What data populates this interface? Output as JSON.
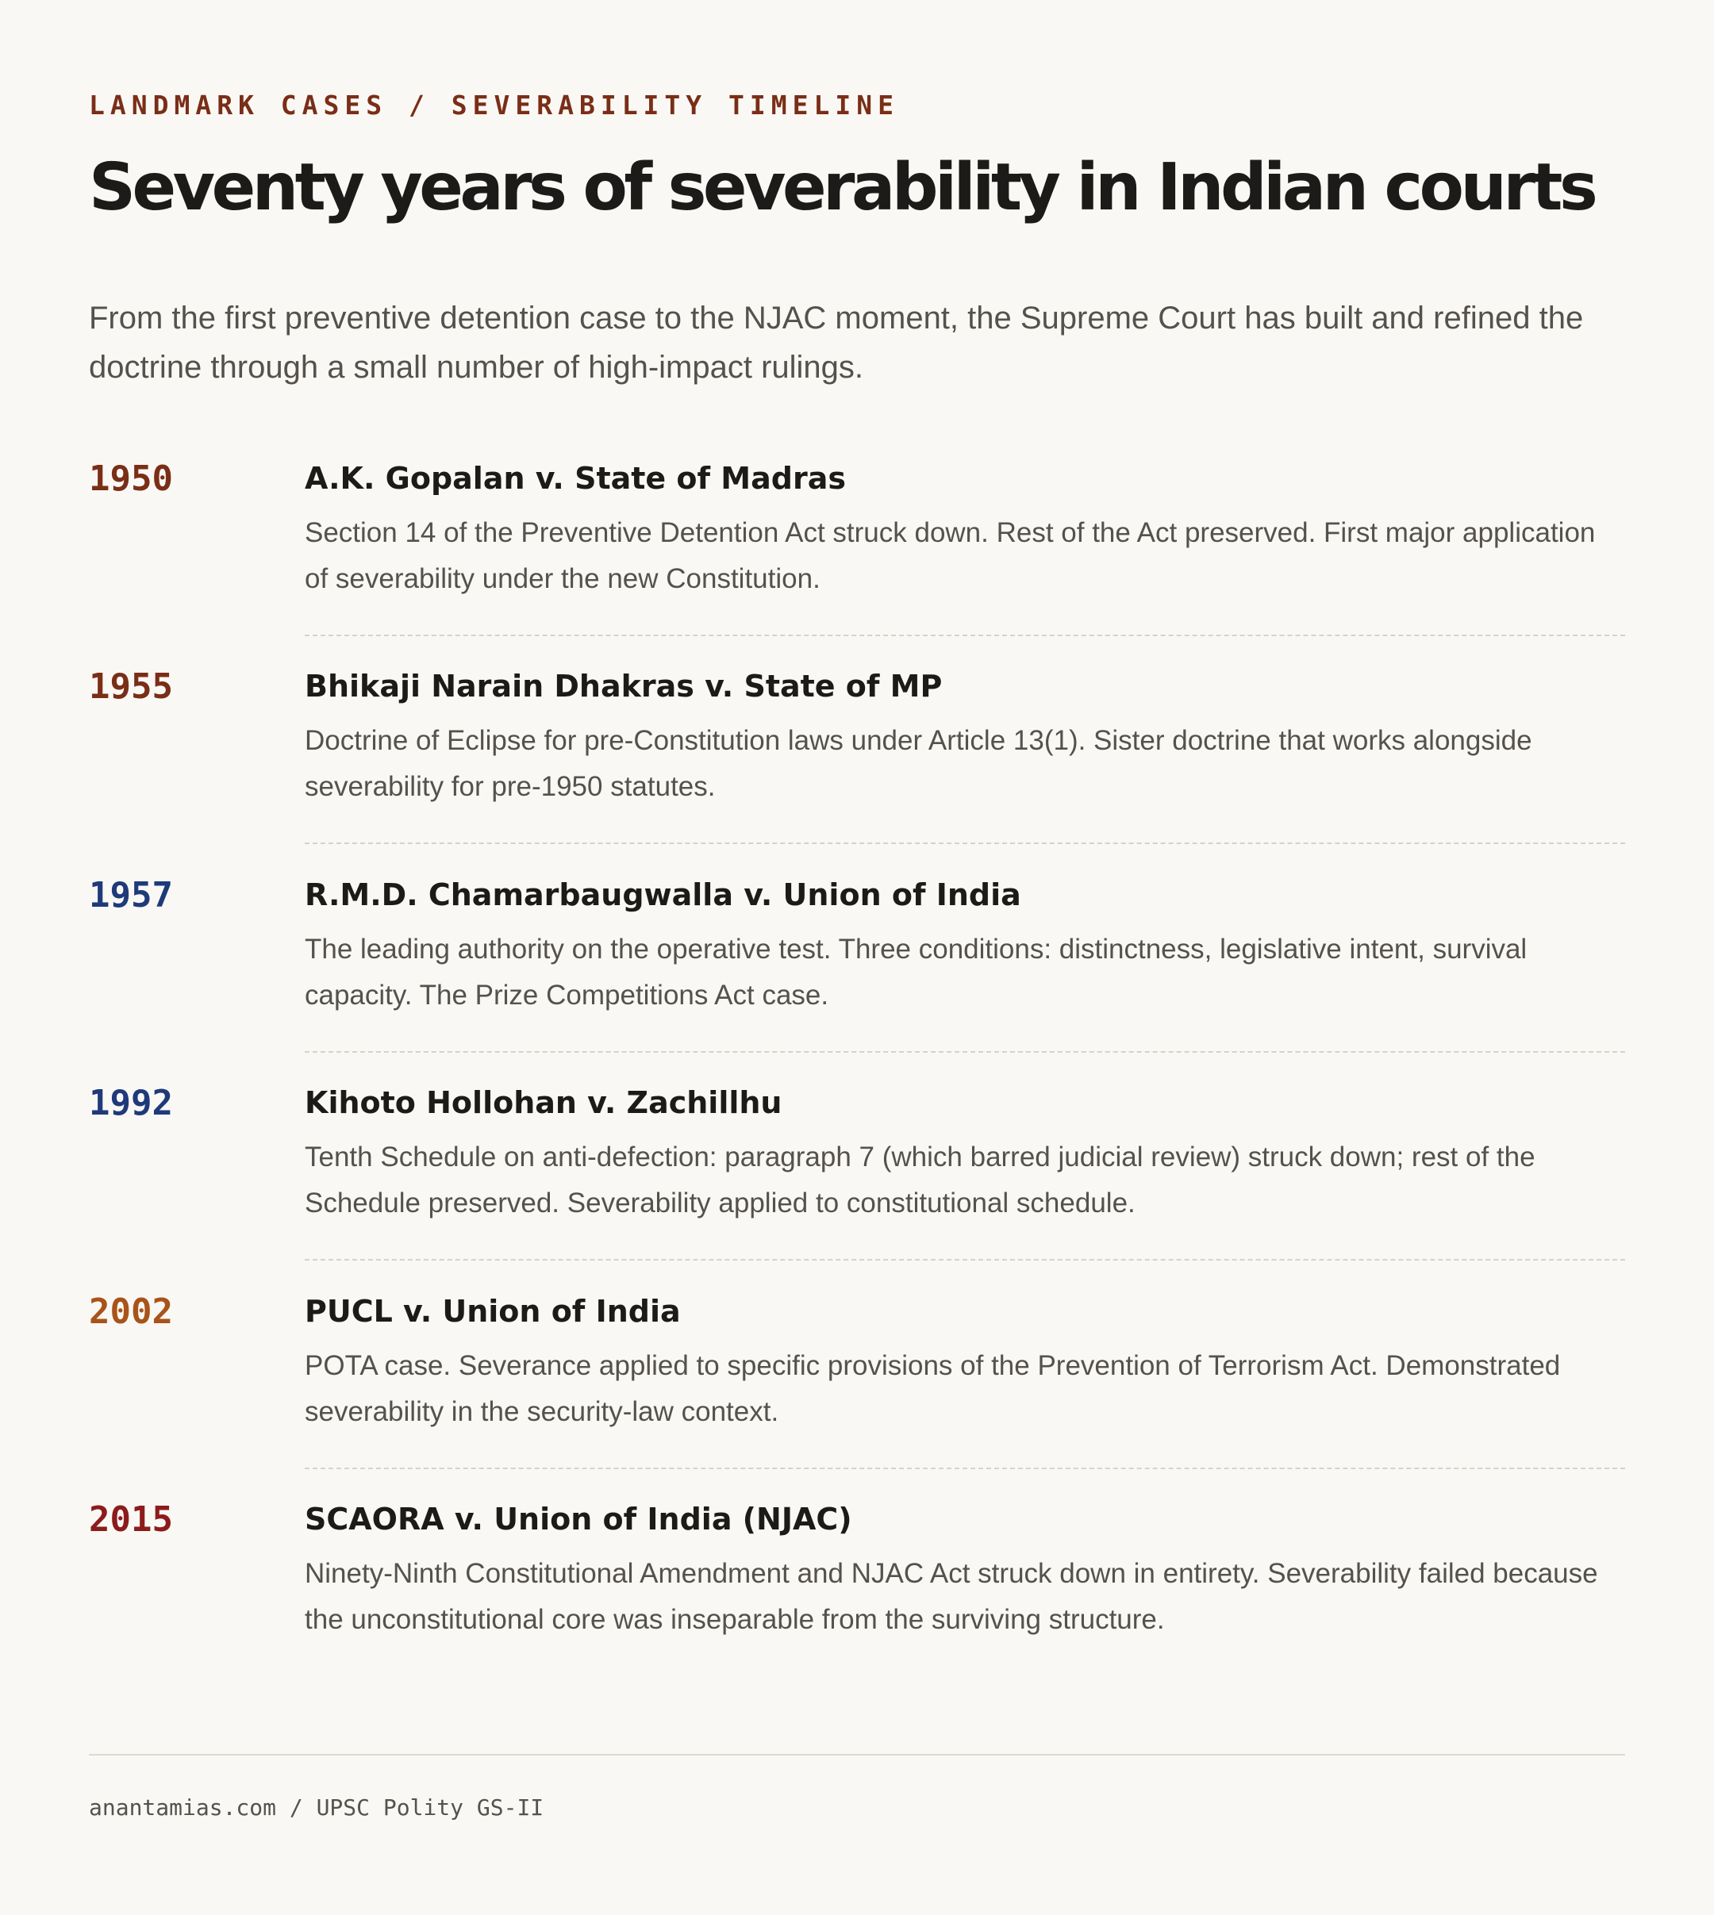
{
  "header": {
    "eyebrow": "LANDMARK CASES / SEVERABILITY TIMELINE",
    "title": "Seventy years of severability in Indian courts",
    "intro": "From the first preventive detention case to the NJAC moment, the Supreme Court has built and refined the doctrine through a small number of high-impact rulings."
  },
  "colors": {
    "accent_brown": "#7a2e17",
    "accent_blue": "#1f3a7a",
    "accent_orange": "#a8531a",
    "accent_red": "#8c1c1c"
  },
  "timeline": [
    {
      "year": "1950",
      "year_color": "#7a2e17",
      "case": "A.K. Gopalan v. State of Madras",
      "summary": "Section 14 of the Preventive Detention Act struck down. Rest of the Act preserved. First major application of severability under the new Constitution."
    },
    {
      "year": "1955",
      "year_color": "#7a2e17",
      "case": "Bhikaji Narain Dhakras v. State of MP",
      "summary": "Doctrine of Eclipse for pre-Constitution laws under Article 13(1). Sister doctrine that works alongside severability for pre-1950 statutes."
    },
    {
      "year": "1957",
      "year_color": "#1f3a7a",
      "case": "R.M.D. Chamarbaugwalla v. Union of India",
      "summary": "The leading authority on the operative test. Three conditions: distinctness, legislative intent, survival capacity. The Prize Competitions Act case."
    },
    {
      "year": "1992",
      "year_color": "#1f3a7a",
      "case": "Kihoto Hollohan v. Zachillhu",
      "summary": "Tenth Schedule on anti-defection: paragraph 7 (which barred judicial review) struck down; rest of the Schedule preserved. Severability applied to constitutional schedule."
    },
    {
      "year": "2002",
      "year_color": "#a8531a",
      "case": "PUCL v. Union of India",
      "summary": "POTA case. Severance applied to specific provisions of the Prevention of Terrorism Act. Demonstrated severability in the security-law context."
    },
    {
      "year": "2015",
      "year_color": "#8c1c1c",
      "case": "SCAORA v. Union of India (NJAC)",
      "summary": "Ninety-Ninth Constitutional Amendment and NJAC Act struck down in entirety. Severability failed because the unconstitutional core was inseparable from the surviving structure."
    }
  ],
  "footer": {
    "text": "anantamias.com / UPSC Polity GS-II"
  }
}
